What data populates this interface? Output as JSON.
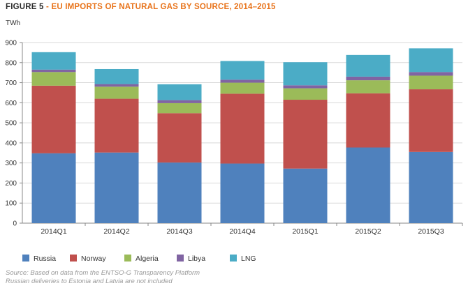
{
  "figure": {
    "label": "FIGURE 5",
    "separator": "-",
    "title": "EU IMPORTS OF NATURAL GAS BY SOURCE, 2014–2015"
  },
  "source_lines": [
    "Source: Based on data from the ENTSO-G Transparency Platform",
    "Russian deliveries to Estonia and Latvia are not included"
  ],
  "colors": {
    "Russia": "#4f81bd",
    "Norway": "#c0504d",
    "Algeria": "#9bbb59",
    "Libya": "#8064a2",
    "LNG": "#4bacc6"
  },
  "chart_data": {
    "type": "bar",
    "stacked": true,
    "ylabel": "TWh",
    "ylim": [
      0,
      900
    ],
    "yticks": [
      0,
      100,
      200,
      300,
      400,
      500,
      600,
      700,
      800,
      900
    ],
    "grid": true,
    "legend": "bottom",
    "categories": [
      "2014Q1",
      "2014Q2",
      "2014Q3",
      "2014Q4",
      "2015Q1",
      "2015Q2",
      "2015Q3"
    ],
    "series": [
      {
        "name": "Russia",
        "values": [
          348,
          352,
          302,
          297,
          272,
          377,
          355
        ]
      },
      {
        "name": "Norway",
        "values": [
          337,
          268,
          246,
          348,
          343,
          270,
          312
        ]
      },
      {
        "name": "Algeria",
        "values": [
          68,
          60,
          50,
          55,
          57,
          65,
          68
        ]
      },
      {
        "name": "Libya",
        "values": [
          12,
          13,
          15,
          15,
          15,
          18,
          18
        ]
      },
      {
        "name": "LNG",
        "values": [
          87,
          75,
          79,
          93,
          115,
          108,
          118
        ]
      }
    ]
  }
}
